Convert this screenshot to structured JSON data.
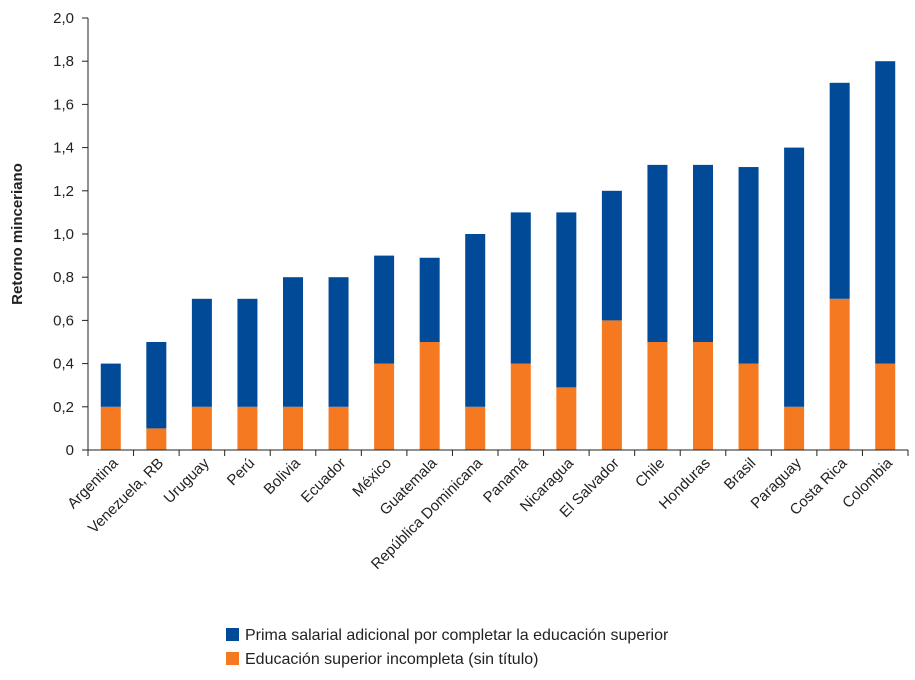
{
  "chart_data": {
    "type": "bar",
    "stacked": true,
    "ylabel": "Retorno minceriano",
    "ylim": [
      0,
      2.0
    ],
    "yticks": [
      "0",
      "0,2",
      "0,4",
      "0,6",
      "0,8",
      "1,0",
      "1,2",
      "1,4",
      "1,6",
      "1,8",
      "2,0"
    ],
    "grid": false,
    "legend_position": "bottom",
    "categories": [
      "Argentina",
      "Venezuela, RB",
      "Uruguay",
      "Perú",
      "Bolivia",
      "Ecuador",
      "México",
      "Guatemala",
      "República Dominicana",
      "Panamá",
      "Nicaragua",
      "El Salvador",
      "Chile",
      "Honduras",
      "Brasil",
      "Paraguay",
      "Costa Rica",
      "Colombia"
    ],
    "series": [
      {
        "name": "Educación superior incompleta (sin título)",
        "color": "#f47920",
        "values": [
          0.2,
          0.1,
          0.2,
          0.2,
          0.2,
          0.2,
          0.4,
          0.5,
          0.2,
          0.4,
          0.29,
          0.6,
          0.5,
          0.5,
          0.4,
          0.2,
          0.7,
          0.4
        ]
      },
      {
        "name": "Prima salarial adicional por completar la educación superior",
        "color": "#004a98",
        "values": [
          0.2,
          0.4,
          0.5,
          0.5,
          0.6,
          0.6,
          0.5,
          0.39,
          0.8,
          0.7,
          0.81,
          0.6,
          0.82,
          0.82,
          0.91,
          1.2,
          1.0,
          1.4
        ]
      }
    ],
    "legend_order": [
      1,
      0
    ]
  }
}
